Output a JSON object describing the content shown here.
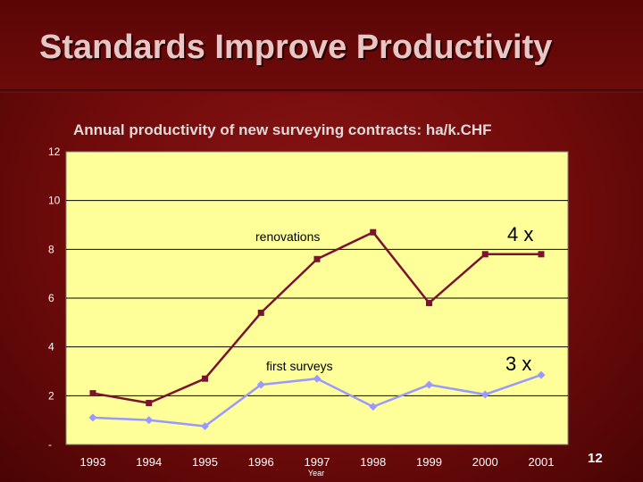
{
  "slide": {
    "title": "Standards Improve Productivity",
    "page_number": "12"
  },
  "colors": {
    "plot_background": "#ffff99",
    "renovations_series": "#7a1230",
    "first_surveys_series": "#9999ff",
    "slide_background": "#6e0a0a"
  },
  "chart_data": {
    "type": "line",
    "title": "Annual productivity of new surveying contracts: ha/k.CHF",
    "xlabel": "Year",
    "ylabel": "",
    "x": [
      "1993",
      "1994",
      "1995",
      "1996",
      "1997",
      "1998",
      "1999",
      "2000",
      "2001"
    ],
    "ylim": [
      0,
      12
    ],
    "yticks": [
      0,
      2,
      4,
      6,
      8,
      10,
      12
    ],
    "ytick_labels": [
      "-",
      "2",
      "4",
      "6",
      "8",
      "10",
      "12"
    ],
    "grid": true,
    "series": [
      {
        "name": "renovations",
        "marker": "square",
        "values": [
          2.1,
          1.7,
          2.7,
          5.4,
          7.6,
          8.7,
          5.8,
          7.8,
          7.8
        ],
        "annotation": "4 x"
      },
      {
        "name": "first surveys",
        "marker": "diamond",
        "values": [
          1.1,
          1.0,
          0.75,
          2.45,
          2.7,
          1.55,
          2.45,
          2.05,
          2.85
        ],
        "annotation": "3 x"
      }
    ]
  }
}
